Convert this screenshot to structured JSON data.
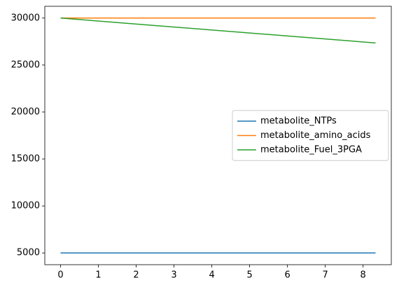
{
  "chart_data": {
    "type": "line",
    "x": [
      0,
      8.33
    ],
    "series": [
      {
        "name": "metabolite_NTPs",
        "color": "#1f77b4",
        "values": [
          5000,
          5000
        ]
      },
      {
        "name": "metabolite_amino_acids",
        "color": "#ff7f0e",
        "values": [
          30000,
          30000
        ]
      },
      {
        "name": "metabolite_Fuel_3PGA",
        "color": "#2ca02c",
        "values": [
          30000,
          27350
        ]
      }
    ],
    "xlim": [
      -0.4165,
      8.7465
    ],
    "xticks": [
      0,
      1,
      2,
      3,
      4,
      5,
      6,
      7,
      8
    ],
    "ylim": [
      3750,
      31250
    ],
    "yticks": [
      5000,
      10000,
      15000,
      20000,
      25000,
      30000
    ],
    "grid": false,
    "legend": "center right"
  }
}
